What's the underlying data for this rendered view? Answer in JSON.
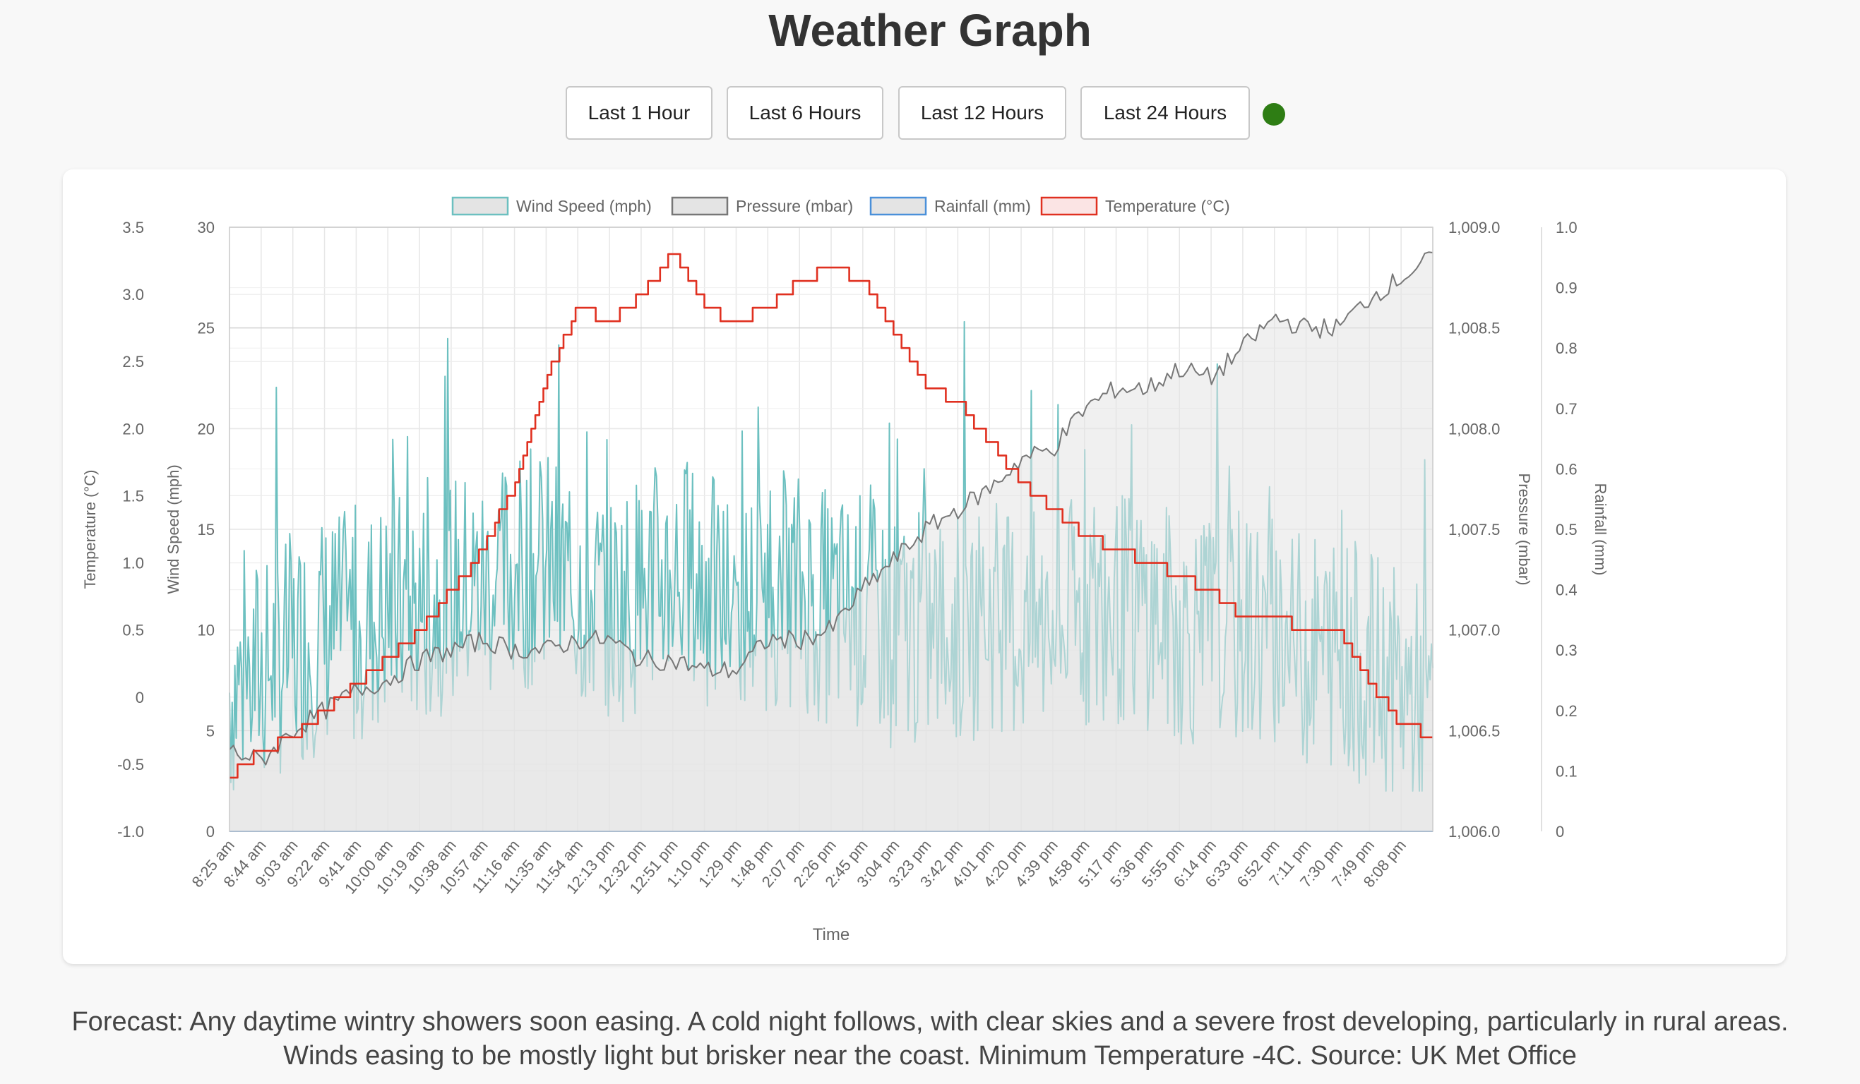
{
  "page": {
    "title": "Weather Graph",
    "buttons": [
      "Last 1 Hour",
      "Last 6 Hours",
      "Last 12 Hours",
      "Last 24 Hours"
    ],
    "status_color": "#2e7d14",
    "forecast": "Forecast: Any daytime wintry showers soon easing. A cold night follows, with clear skies and a severe frost developing, particularly in rural areas. Winds easing to be mostly light but brisker near the coast. Minimum Temperature -4C. Source: UK Met Office"
  },
  "chart_data": {
    "type": "line",
    "xlabel": "Time",
    "x_ticks": [
      "8:25 am",
      "8:44 am",
      "9:03 am",
      "9:22 am",
      "9:41 am",
      "10:00 am",
      "10:19 am",
      "10:38 am",
      "10:57 am",
      "11:16 am",
      "11:35 am",
      "11:54 am",
      "12:13 pm",
      "12:32 pm",
      "12:51 pm",
      "1:10 pm",
      "1:29 pm",
      "1:48 pm",
      "2:07 pm",
      "2:26 pm",
      "2:45 pm",
      "3:04 pm",
      "3:23 pm",
      "3:42 pm",
      "4:01 pm",
      "4:20 pm",
      "4:39 pm",
      "4:58 pm",
      "5:17 pm",
      "5:36 pm",
      "5:55 pm",
      "6:14 pm",
      "6:33 pm",
      "6:52 pm",
      "7:11 pm",
      "7:30 pm",
      "7:49 pm",
      "8:08 pm"
    ],
    "legend_position": "top",
    "grid": true,
    "axes": {
      "temperature": {
        "label": "Temperature (°C)",
        "ticks": [
          "3.5",
          "3.0",
          "2.5",
          "2.0",
          "1.5",
          "1.0",
          "0.5",
          "0",
          "-0.5",
          "-1.0"
        ],
        "range": [
          -1.0,
          3.5
        ]
      },
      "wind": {
        "label": "Wind Speed (mph)",
        "ticks": [
          "30",
          "25",
          "20",
          "15",
          "10",
          "5",
          "0"
        ],
        "range": [
          0,
          30
        ]
      },
      "pressure": {
        "label": "Pressure (mbar)",
        "ticks": [
          "1,009.0",
          "1,008.5",
          "1,008.0",
          "1,007.5",
          "1,007.0",
          "1,006.5",
          "1,006.0"
        ],
        "range": [
          1006.0,
          1009.0
        ]
      },
      "rainfall": {
        "label": "Rainfall (mm)",
        "ticks": [
          "1.0",
          "0.9",
          "0.8",
          "0.7",
          "0.6",
          "0.5",
          "0.4",
          "0.3",
          "0.2",
          "0.1",
          "0"
        ],
        "range": [
          0,
          1.0
        ]
      }
    },
    "series": [
      {
        "name": "Wind Speed (mph)",
        "axis": "wind",
        "color": "#6cc0c0",
        "fill": "#e4e4e4",
        "x": [
          0,
          1,
          2,
          3,
          4,
          5,
          6,
          7,
          8,
          9,
          10,
          11,
          12,
          13,
          14,
          15,
          16,
          17,
          18,
          19,
          20,
          21,
          22,
          23,
          24,
          25,
          26,
          27,
          28,
          29,
          30,
          31,
          32,
          33,
          34,
          35,
          36,
          37,
          38
        ],
        "y": [
          7,
          8,
          9,
          10,
          10,
          11,
          11,
          12,
          12,
          13,
          13,
          12,
          11,
          12,
          13,
          12,
          11,
          12,
          12,
          11,
          11,
          10,
          10,
          10,
          11,
          10,
          10,
          11,
          11,
          11,
          10,
          10,
          10,
          10,
          9,
          9,
          8,
          7,
          6
        ],
        "gust_range": [
          2,
          26
        ]
      },
      {
        "name": "Pressure (mbar)",
        "axis": "pressure",
        "color": "#777777",
        "fill": "#e4e4e4",
        "x": [
          0,
          1,
          2,
          3,
          4,
          5,
          6,
          7,
          8,
          9,
          10,
          11,
          12,
          13,
          14,
          15,
          16,
          17,
          18,
          19,
          20,
          21,
          22,
          23,
          24,
          25,
          26,
          27,
          28,
          29,
          30,
          31,
          32,
          33,
          34,
          35,
          36,
          37,
          38
        ],
        "y": [
          1006.4,
          1006.35,
          1006.5,
          1006.6,
          1006.7,
          1006.75,
          1006.85,
          1006.9,
          1006.95,
          1006.9,
          1006.9,
          1006.95,
          1006.95,
          1006.85,
          1006.85,
          1006.8,
          1006.8,
          1006.95,
          1006.95,
          1007.0,
          1007.2,
          1007.35,
          1007.5,
          1007.6,
          1007.7,
          1007.85,
          1007.9,
          1008.1,
          1008.2,
          1008.2,
          1008.3,
          1008.25,
          1008.4,
          1008.55,
          1008.5,
          1008.5,
          1008.65,
          1008.75,
          1008.85
        ]
      },
      {
        "name": "Rainfall (mm)",
        "axis": "rainfall",
        "color": "#4a90d9",
        "fill": "#e4e4e4",
        "x": [
          0,
          38
        ],
        "y": [
          0,
          0
        ]
      },
      {
        "name": "Temperature (°C)",
        "axis": "temperature",
        "color": "#e03020",
        "fill": "#fbe4e4",
        "x": [
          0,
          1,
          2,
          3,
          4,
          5,
          6,
          7,
          8,
          9,
          10,
          11,
          12,
          13,
          14,
          15,
          16,
          17,
          18,
          19,
          20,
          21,
          22,
          23,
          24,
          25,
          26,
          27,
          28,
          29,
          30,
          31,
          32,
          33,
          34,
          35,
          36,
          37,
          38
        ],
        "y": [
          -0.6,
          -0.4,
          -0.3,
          -0.1,
          0.1,
          0.3,
          0.5,
          0.8,
          1.1,
          1.6,
          2.4,
          2.9,
          2.8,
          3.0,
          3.3,
          2.9,
          2.8,
          2.9,
          3.1,
          3.2,
          3.1,
          2.7,
          2.3,
          2.2,
          1.9,
          1.6,
          1.4,
          1.2,
          1.1,
          1.0,
          0.9,
          0.8,
          0.6,
          0.6,
          0.5,
          0.5,
          0.1,
          -0.2,
          -0.3
        ]
      }
    ]
  }
}
